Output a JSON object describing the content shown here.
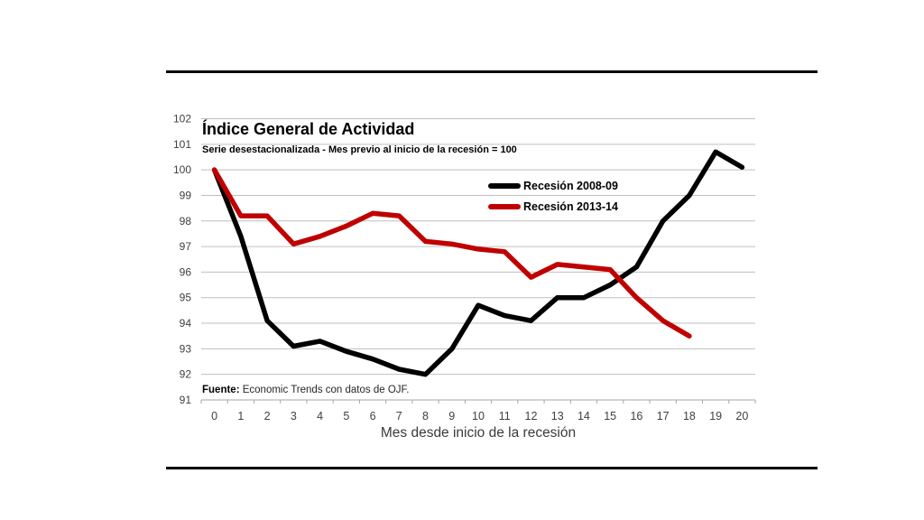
{
  "header": {
    "title": "Índice General de Actividad",
    "subtitle": "Serie desestacionalizada - Mes previo al inicio de la recesión = 100"
  },
  "legend": {
    "items": [
      {
        "label": "Recesión 2008-09",
        "color": "#000000"
      },
      {
        "label": "Recesión 2013-14",
        "color": "#c00000"
      }
    ]
  },
  "source": {
    "prefix": "Fuente:",
    "text": " Economic Trends con datos de OJF."
  },
  "chart_data": {
    "type": "line",
    "title": "Índice General de Actividad",
    "subtitle": "Serie desestacionalizada - Mes previo al inicio de la recesión = 100",
    "xlabel": "Mes desde inicio de la recesión",
    "ylabel": "",
    "ylim": [
      91,
      102
    ],
    "ytick_step": 1,
    "grid": "horizontal",
    "legend_position": "inside-top-right",
    "x": [
      0,
      1,
      2,
      3,
      4,
      5,
      6,
      7,
      8,
      9,
      10,
      11,
      12,
      13,
      14,
      15,
      16,
      17,
      18,
      19,
      20
    ],
    "series": [
      {
        "name": "Recesión 2008-09",
        "color": "#000000",
        "values": [
          100,
          97.4,
          94.1,
          93.1,
          93.3,
          92.9,
          92.6,
          92.2,
          92.0,
          93.0,
          94.7,
          94.3,
          94.1,
          95.0,
          95.0,
          95.5,
          96.2,
          98.0,
          99.0,
          100.7,
          100.1
        ]
      },
      {
        "name": "Recesión 2013-14",
        "color": "#c00000",
        "values": [
          100,
          98.2,
          98.2,
          97.1,
          97.4,
          97.8,
          98.3,
          98.2,
          97.2,
          97.1,
          96.9,
          96.8,
          95.8,
          96.3,
          96.2,
          96.1,
          95.0,
          94.1,
          93.5
        ]
      }
    ]
  }
}
